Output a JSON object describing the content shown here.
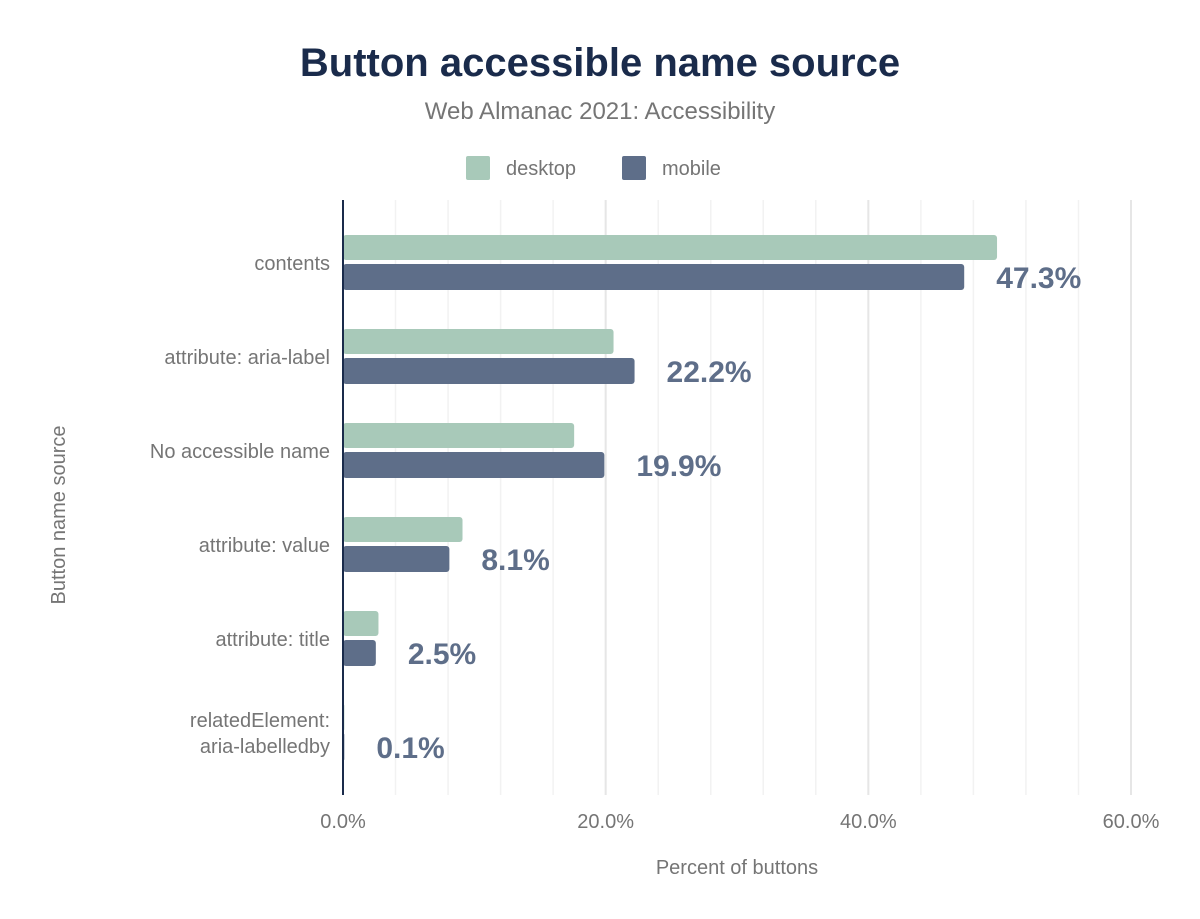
{
  "chart_data": {
    "type": "bar",
    "orientation": "horizontal",
    "title": "Button accessible name source",
    "subtitle": "Web Almanac 2021: Accessibility",
    "xlabel": "Percent of buttons",
    "ylabel": "Button name source",
    "categories": [
      [
        "contents"
      ],
      [
        "attribute: aria-label"
      ],
      [
        "No accessible name"
      ],
      [
        "attribute: value"
      ],
      [
        "attribute: title"
      ],
      [
        "relatedElement:",
        "aria-labelledby"
      ]
    ],
    "series": [
      {
        "name": "desktop",
        "color": "#a8c9b9",
        "values": [
          49.8,
          20.6,
          17.6,
          9.1,
          2.7,
          0.1
        ]
      },
      {
        "name": "mobile",
        "color": "#5e6e89",
        "values": [
          47.3,
          22.2,
          19.9,
          8.1,
          2.5,
          0.1
        ]
      }
    ],
    "data_labels": [
      "47.3%",
      "22.2%",
      "19.9%",
      "8.1%",
      "2.5%",
      "0.1%"
    ],
    "xlim": [
      0,
      60
    ],
    "xticks": [
      "0.0%",
      "20.0%",
      "40.0%",
      "60.0%"
    ],
    "grid": true,
    "legend": "top-center"
  }
}
